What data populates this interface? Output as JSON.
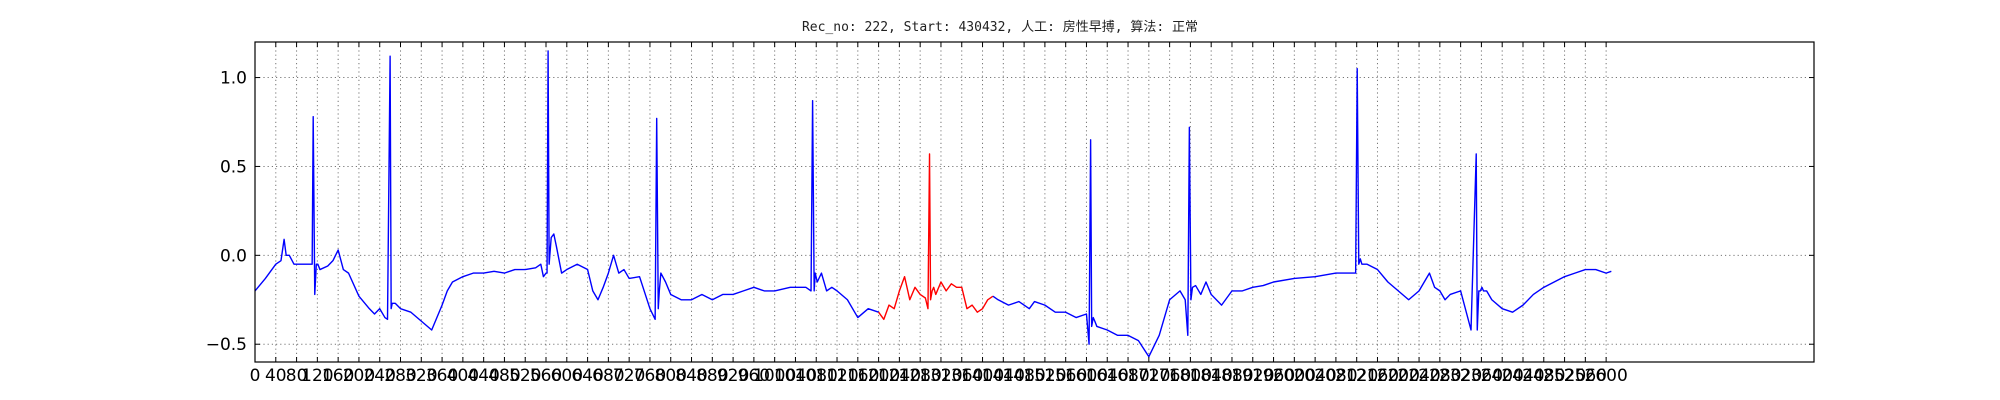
{
  "chart_data": {
    "type": "line",
    "title": "Rec_no: 222, Start: 430432, 人工: 房性早搏, 算法: 正常",
    "xlabel": "",
    "ylabel": "",
    "xlim": [
      0,
      3000
    ],
    "ylim": [
      -0.6,
      1.2
    ],
    "grid": true,
    "x_ticks": [
      0,
      40,
      80,
      120,
      160,
      200,
      240,
      280,
      320,
      360,
      400,
      440,
      480,
      520,
      560,
      600,
      640,
      680,
      720,
      760,
      800,
      840,
      880,
      920,
      960,
      1000,
      1040,
      1080,
      1120,
      1160,
      1200,
      1240,
      1280,
      1320,
      1360,
      1400,
      1440,
      1480,
      1520,
      1560,
      1600,
      1640,
      1680,
      1720,
      1760,
      1800,
      1840,
      1880,
      1920,
      1960,
      2000,
      2040,
      2080,
      2120,
      2160,
      2200,
      2240,
      2280,
      2320,
      2360,
      2400,
      2440,
      2480,
      2520,
      2560,
      2600
    ],
    "x_tick_labels": [
      "0",
      "40",
      "80",
      "120",
      "160",
      "200",
      "240",
      "280",
      "320",
      "360",
      "400",
      "440",
      "480",
      "520",
      "560",
      "600",
      "640",
      "680",
      "720",
      "760",
      "800",
      "840",
      "880",
      "920",
      "960",
      "1000",
      "1040",
      "1080",
      "1120",
      "1160",
      "1200",
      "1240",
      "1280",
      "1320",
      "1360",
      "1400",
      "1440",
      "1480",
      "1520",
      "1560",
      "1600",
      "1640",
      "1680",
      "1720",
      "1760",
      "1800",
      "1840",
      "1880",
      "1920",
      "1960",
      "2000",
      "2040",
      "2080",
      "2120",
      "2160",
      "2200",
      "2240",
      "2280",
      "2320",
      "2360",
      "2400",
      "2440",
      "2480",
      "2520",
      "2560",
      "2600"
    ],
    "y_ticks": [
      -0.5,
      0.0,
      0.5,
      1.0
    ],
    "y_tick_labels": [
      "−0.5",
      "0.0",
      "0.5",
      "1.0"
    ],
    "series": [
      {
        "color": "#0000ff",
        "x": [
          0,
          20,
          40,
          50,
          56,
          60,
          66,
          75,
          90,
          100,
          110,
          112,
          115,
          118,
          121,
          125,
          140,
          150,
          160,
          170,
          180,
          200,
          220,
          230,
          240,
          250,
          255,
          260,
          262,
          264,
          266,
          270,
          280,
          300,
          320,
          340,
          360,
          370,
          380,
          400,
          420,
          440,
          460,
          480,
          500,
          520,
          540,
          550,
          555,
          560,
          562,
          564,
          566,
          570,
          575,
          580,
          590,
          600,
          620,
          640,
          650,
          660,
          670,
          680,
          690,
          700,
          710,
          720,
          740,
          760,
          770,
          773,
          776,
          778,
          781,
          790,
          800,
          820,
          840,
          860,
          880,
          900,
          920,
          940,
          960,
          980,
          1000,
          1030,
          1060,
          1070,
          1073,
          1076,
          1078,
          1082,
          1090,
          1100,
          1110,
          1120,
          1140,
          1160,
          1180,
          1200
        ],
        "y": [
          -0.2,
          -0.13,
          -0.05,
          -0.03,
          0.09,
          0.0,
          0.0,
          -0.05,
          -0.05,
          -0.05,
          -0.05,
          0.78,
          -0.22,
          -0.05,
          -0.05,
          -0.08,
          -0.06,
          -0.03,
          0.03,
          -0.08,
          -0.1,
          -0.23,
          -0.3,
          -0.33,
          -0.3,
          -0.35,
          -0.36,
          1.12,
          -0.3,
          -0.27,
          -0.27,
          -0.27,
          -0.3,
          -0.32,
          -0.37,
          -0.42,
          -0.28,
          -0.2,
          -0.15,
          -0.12,
          -0.1,
          -0.1,
          -0.09,
          -0.1,
          -0.08,
          -0.08,
          -0.07,
          -0.05,
          -0.12,
          -0.1,
          -0.1,
          1.15,
          -0.05,
          0.1,
          0.12,
          0.05,
          -0.1,
          -0.08,
          -0.05,
          -0.08,
          -0.2,
          -0.25,
          -0.18,
          -0.1,
          0.0,
          -0.1,
          -0.08,
          -0.13,
          -0.12,
          -0.3,
          -0.36,
          0.77,
          -0.3,
          -0.2,
          -0.1,
          -0.15,
          -0.22,
          -0.25,
          -0.25,
          -0.22,
          -0.25,
          -0.22,
          -0.22,
          -0.2,
          -0.18,
          -0.2,
          -0.2,
          -0.18,
          -0.18,
          -0.2,
          0.87,
          -0.2,
          -0.1,
          -0.15,
          -0.1,
          -0.2,
          -0.18,
          -0.2,
          -0.25,
          -0.35,
          -0.3,
          -0.32
        ]
      },
      {
        "color": "#ff0000",
        "x": [
          1200,
          1210,
          1220,
          1230,
          1240,
          1250,
          1260,
          1270,
          1280,
          1290,
          1295,
          1298,
          1300,
          1303,
          1306,
          1310,
          1320,
          1330,
          1340,
          1350,
          1360,
          1370,
          1380,
          1390,
          1400,
          1410,
          1420
        ],
        "y": [
          -0.32,
          -0.36,
          -0.28,
          -0.3,
          -0.2,
          -0.12,
          -0.25,
          -0.18,
          -0.22,
          -0.24,
          -0.3,
          0.57,
          -0.25,
          -0.2,
          -0.18,
          -0.22,
          -0.15,
          -0.2,
          -0.16,
          -0.18,
          -0.18,
          -0.3,
          -0.28,
          -0.32,
          -0.3,
          -0.25,
          -0.23
        ]
      },
      {
        "color": "#0000ff",
        "x": [
          1420,
          1430,
          1450,
          1470,
          1490,
          1500,
          1520,
          1540,
          1560,
          1580,
          1600,
          1605,
          1608,
          1610,
          1613,
          1616,
          1620,
          1640,
          1660,
          1680,
          1700,
          1720,
          1740,
          1760,
          1780,
          1790,
          1795,
          1798,
          1801,
          1804,
          1810,
          1820,
          1830,
          1840,
          1860,
          1880,
          1900,
          1920,
          1940,
          1960,
          2000,
          2040,
          2080,
          2110,
          2118,
          2121,
          2124,
          2127,
          2130,
          2140,
          2160,
          2180,
          2200,
          2220,
          2240,
          2260,
          2270,
          2280,
          2290,
          2300,
          2320,
          2340,
          2350,
          2352,
          2355,
          2358,
          2361,
          2364,
          2370,
          2380,
          2400,
          2420,
          2440,
          2460,
          2480,
          2500,
          2520,
          2540,
          2560,
          2580,
          2600,
          2610
        ],
        "y": [
          -0.23,
          -0.25,
          -0.28,
          -0.26,
          -0.3,
          -0.26,
          -0.28,
          -0.32,
          -0.32,
          -0.35,
          -0.33,
          -0.5,
          0.65,
          -0.4,
          -0.35,
          -0.37,
          -0.4,
          -0.42,
          -0.45,
          -0.45,
          -0.48,
          -0.57,
          -0.45,
          -0.25,
          -0.2,
          -0.25,
          -0.45,
          0.72,
          -0.25,
          -0.18,
          -0.17,
          -0.22,
          -0.15,
          -0.22,
          -0.28,
          -0.2,
          -0.2,
          -0.18,
          -0.17,
          -0.15,
          -0.13,
          -0.12,
          -0.1,
          -0.1,
          -0.1,
          1.05,
          -0.05,
          -0.02,
          -0.05,
          -0.05,
          -0.08,
          -0.15,
          -0.2,
          -0.25,
          -0.2,
          -0.1,
          -0.18,
          -0.2,
          -0.25,
          -0.22,
          -0.2,
          -0.42,
          0.57,
          -0.42,
          -0.2,
          -0.2,
          -0.18,
          -0.2,
          -0.2,
          -0.25,
          -0.3,
          -0.32,
          -0.28,
          -0.22,
          -0.18,
          -0.15,
          -0.12,
          -0.1,
          -0.08,
          -0.08,
          -0.1,
          -0.09
        ]
      }
    ]
  }
}
